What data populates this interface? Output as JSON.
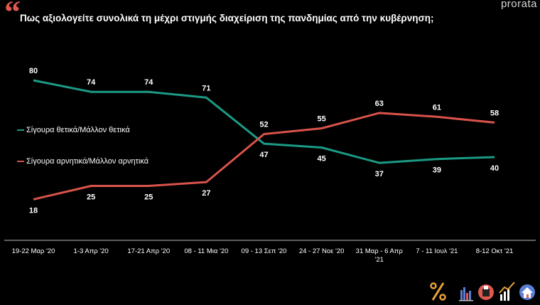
{
  "header": {
    "title": "Πως αξιολογείτε συνολικά τη μέχρι στιγμής διαχείριση της πανδημίας από την κυβέρνηση;",
    "brand": "prorata"
  },
  "colors": {
    "background": "#000000",
    "positive": "#1b9a85",
    "negative": "#d9534a",
    "text": "#ffffff",
    "axis": "#bfbfbf"
  },
  "chart_data": {
    "type": "line",
    "title": "Πως αξιολογείτε συνολικά τη μέχρι στιγμής διαχείριση της πανδημίας από την κυβέρνηση;",
    "categories": [
      "19-22 Μαρ '20",
      "1-3 Απρ '20",
      "17-21 Απρ '20",
      "08 - 11 Μια '20",
      "09 - 13 Σεπ '20",
      "24 - 27 Νοε '20",
      "31 Μαρ - 6 Απρ '21",
      "7 - 11 Ιουλ '21",
      "8-12 Οκτ '21"
    ],
    "series": [
      {
        "name": "Σίγουρα θετικά/Μάλλον θετικά",
        "color": "#1b9a85",
        "values": [
          80,
          74,
          74,
          71,
          47,
          45,
          37,
          39,
          40
        ]
      },
      {
        "name": "Σίγουρα αρνητικά/Μάλλον αρνητικά",
        "color": "#d9534a",
        "values": [
          18,
          25,
          25,
          27,
          52,
          55,
          63,
          61,
          58
        ]
      }
    ],
    "ylim": [
      10,
      90
    ],
    "grid": false,
    "legend": "left-middle",
    "xlabel": "",
    "ylabel": ""
  },
  "footer": {
    "icons": [
      "percent-icon",
      "bar-chart-icon",
      "ballot-icon",
      "growth-chart-icon",
      "house-icon"
    ]
  }
}
